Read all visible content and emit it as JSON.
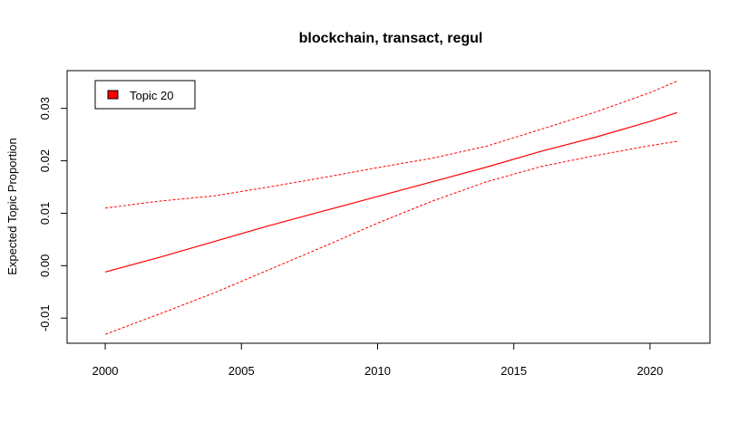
{
  "chart_data": {
    "type": "line",
    "title": "blockchain, transact, regul",
    "xlabel": "",
    "ylabel": "Expected Topic Proportion",
    "xlim": [
      1998.6,
      2022.2
    ],
    "ylim": [
      -0.0148,
      0.0372
    ],
    "x_ticks": [
      2000,
      2005,
      2010,
      2015,
      2020
    ],
    "x_tick_labels": [
      "2000",
      "2005",
      "2010",
      "2015",
      "2020"
    ],
    "y_ticks": [
      -0.01,
      0.0,
      0.01,
      0.02,
      0.03
    ],
    "y_tick_labels": [
      "-0.01",
      "0.00",
      "0.01",
      "0.02",
      "0.03"
    ],
    "legend": {
      "position": "top-left",
      "entries": [
        {
          "label": "Topic 20",
          "color": "#ff0000"
        }
      ]
    },
    "grid": false,
    "colors": {
      "series": "#ff0000",
      "frame": "#000000"
    },
    "x": [
      2000,
      2002,
      2004,
      2006,
      2008,
      2010,
      2012,
      2014,
      2016,
      2018,
      2020,
      2021
    ],
    "series": [
      {
        "role": "estimate",
        "style": "solid",
        "values": [
          -0.0012,
          0.0016,
          0.0046,
          0.0076,
          0.0104,
          0.0132,
          0.016,
          0.0188,
          0.0218,
          0.0245,
          0.0275,
          0.0292
        ]
      },
      {
        "role": "upper",
        "style": "dashed",
        "values": [
          0.011,
          0.0123,
          0.0133,
          0.015,
          0.0168,
          0.0187,
          0.0205,
          0.0228,
          0.026,
          0.0293,
          0.033,
          0.0352
        ]
      },
      {
        "role": "lower",
        "style": "dashed",
        "values": [
          -0.0131,
          -0.0092,
          -0.0052,
          -0.0008,
          0.0036,
          0.0081,
          0.0123,
          0.016,
          0.0189,
          0.021,
          0.0229,
          0.0237
        ]
      }
    ]
  }
}
